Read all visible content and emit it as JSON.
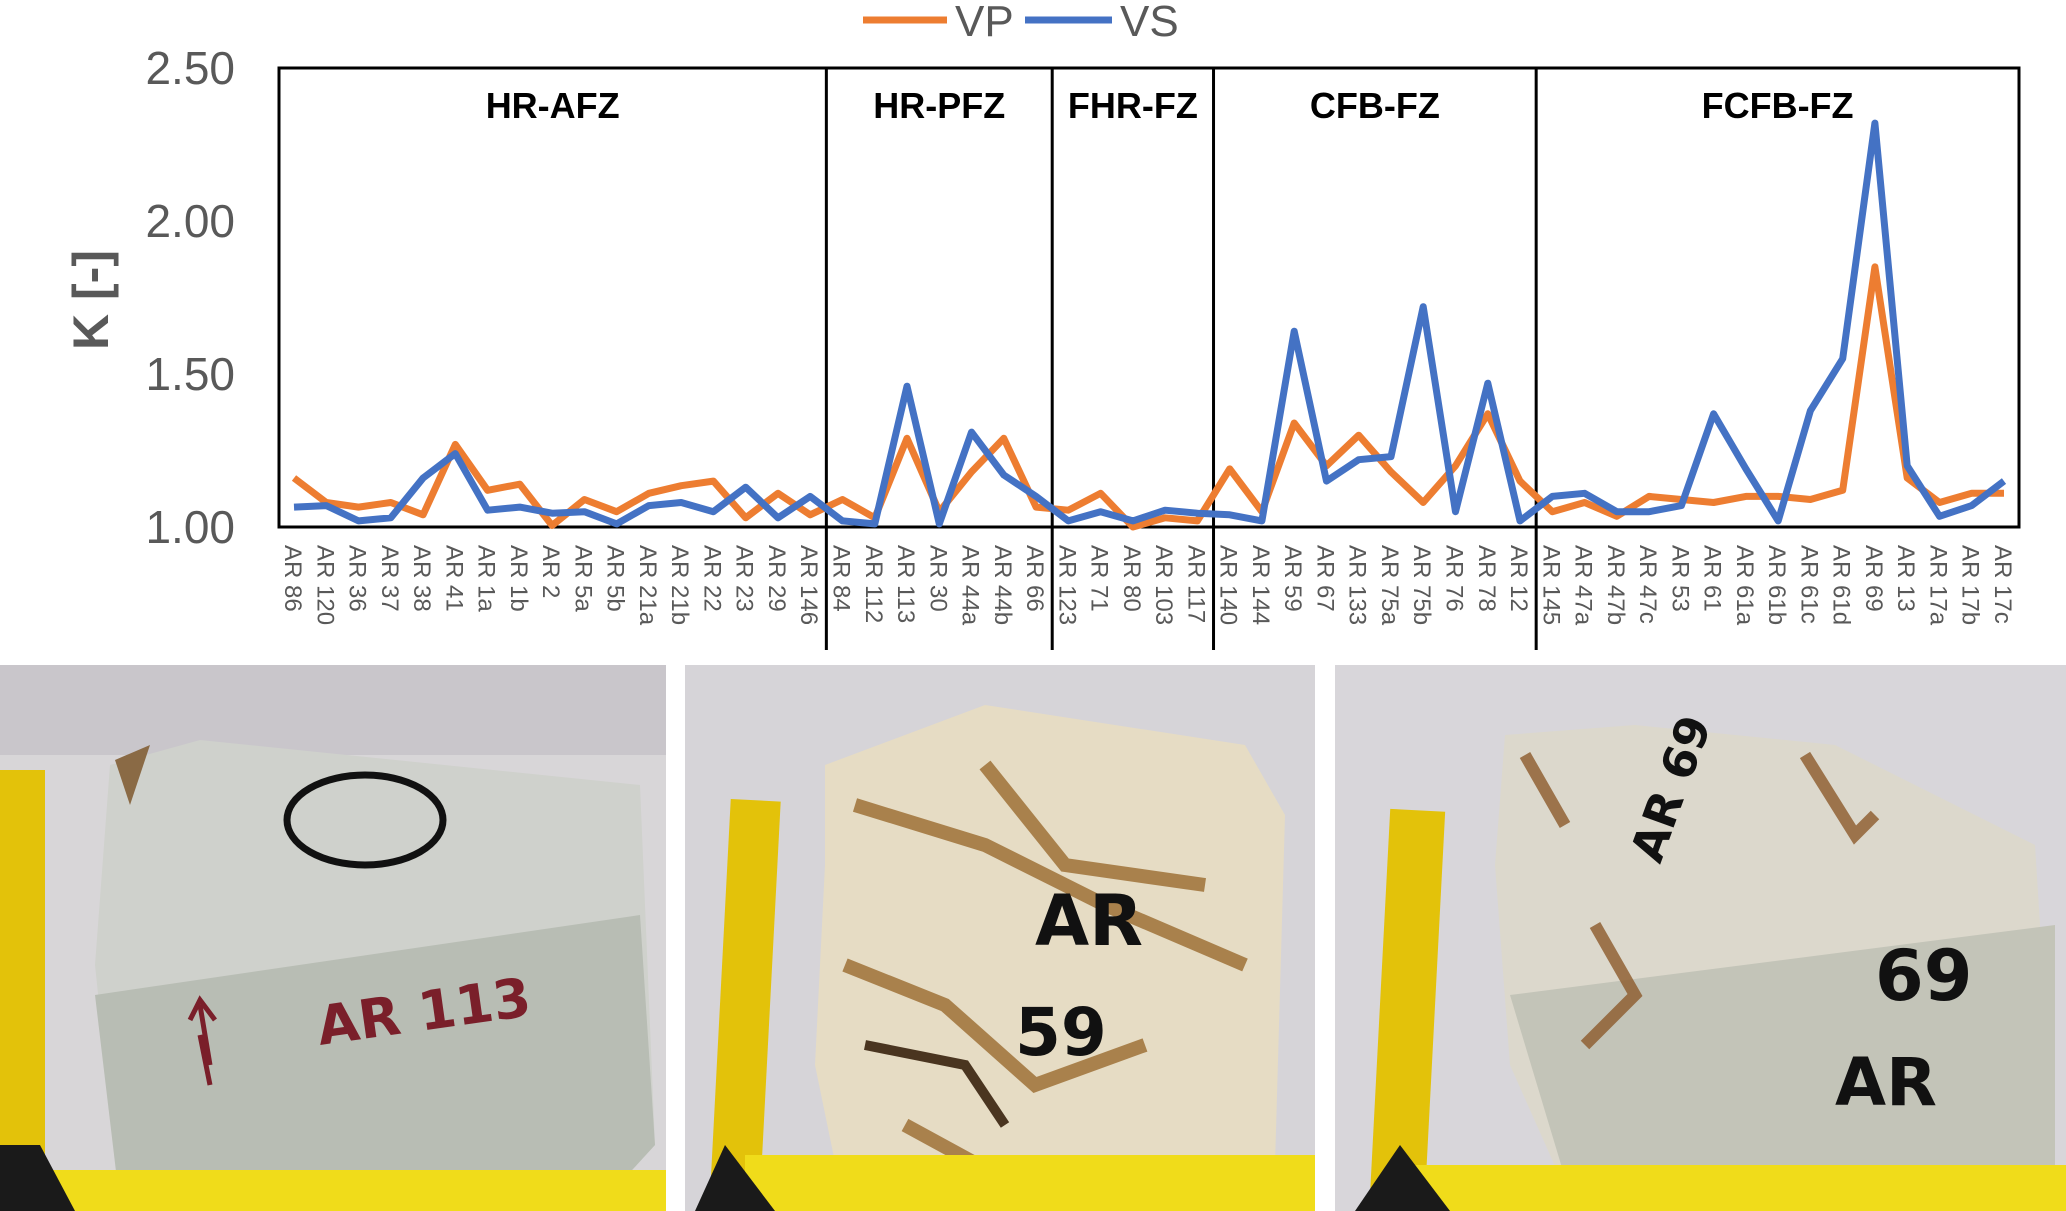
{
  "chart_data": {
    "type": "line",
    "title": "",
    "xlabel": "",
    "ylabel": "K [-]",
    "ylim": [
      1.0,
      2.5
    ],
    "yticks": [
      "1.00",
      "1.50",
      "2.00",
      "2.50"
    ],
    "ytick_values": [
      1.0,
      1.5,
      2.0,
      2.5
    ],
    "grid": false,
    "legend_position": "top-center",
    "categories": [
      "AR 86",
      "AR 120",
      "AR 36",
      "AR 37",
      "AR 38",
      "AR 41",
      "AR 1a",
      "AR 1b",
      "AR 2",
      "AR 5a",
      "AR 5b",
      "AR 21a",
      "AR 21b",
      "AR 22",
      "AR 23",
      "AR 29",
      "AR 146",
      "AR 84",
      "AR 112",
      "AR 113",
      "AR 30",
      "AR 44a",
      "AR 44b",
      "AR 66",
      "AR 123",
      "AR 71",
      "AR 80",
      "AR 103",
      "AR 117",
      "AR 140",
      "AR 144",
      "AR 59",
      "AR 67",
      "AR 133",
      "AR 75a",
      "AR 75b",
      "AR 76",
      "AR 78",
      "AR 12",
      "AR 145",
      "AR 47a",
      "AR 47b",
      "AR 47c",
      "AR 53",
      "AR 61",
      "AR 61a",
      "AR 61b",
      "AR 61c",
      "AR 61d",
      "AR 69",
      "AR 13",
      "AR 17a",
      "AR 17b",
      "AR 17c"
    ],
    "zones": [
      {
        "label": "HR-AFZ",
        "count": 17
      },
      {
        "label": "HR-PFZ",
        "count": 7
      },
      {
        "label": "FHR-FZ",
        "count": 5
      },
      {
        "label": "CFB-FZ",
        "count": 10
      },
      {
        "label": "FCFB-FZ",
        "count": 15
      }
    ],
    "series": [
      {
        "name": "VP",
        "color": "#ED7D31",
        "values": [
          1.16,
          1.08,
          1.065,
          1.08,
          1.04,
          1.27,
          1.12,
          1.14,
          1.005,
          1.09,
          1.05,
          1.11,
          1.135,
          1.15,
          1.03,
          1.11,
          1.04,
          1.09,
          1.03,
          1.29,
          1.05,
          1.18,
          1.29,
          1.065,
          1.055,
          1.11,
          1.0,
          1.03,
          1.02,
          1.19,
          1.05,
          1.34,
          1.2,
          1.3,
          1.18,
          1.08,
          1.2,
          1.37,
          1.15,
          1.05,
          1.08,
          1.035,
          1.1,
          1.09,
          1.08,
          1.1,
          1.1,
          1.09,
          1.12,
          1.85,
          1.16,
          1.08,
          1.11,
          1.11
        ]
      },
      {
        "name": "VS",
        "color": "#4472C4",
        "values": [
          1.065,
          1.07,
          1.02,
          1.03,
          1.16,
          1.24,
          1.055,
          1.065,
          1.045,
          1.05,
          1.01,
          1.07,
          1.08,
          1.05,
          1.13,
          1.03,
          1.1,
          1.02,
          1.01,
          1.46,
          1.01,
          1.31,
          1.17,
          1.1,
          1.02,
          1.05,
          1.02,
          1.055,
          1.045,
          1.04,
          1.02,
          1.64,
          1.15,
          1.22,
          1.23,
          1.72,
          1.05,
          1.47,
          1.02,
          1.1,
          1.11,
          1.05,
          1.05,
          1.07,
          1.37,
          1.19,
          1.02,
          1.38,
          1.55,
          2.32,
          1.2,
          1.035,
          1.07,
          1.15
        ]
      }
    ]
  },
  "photos": [
    {
      "sample_label": "AR 113"
    },
    {
      "sample_label_top": "AR",
      "sample_label_bottom": "59"
    },
    {
      "sample_label_top": "AR 69",
      "sample_label_mid": "69",
      "sample_label_bottom": "AR"
    }
  ]
}
